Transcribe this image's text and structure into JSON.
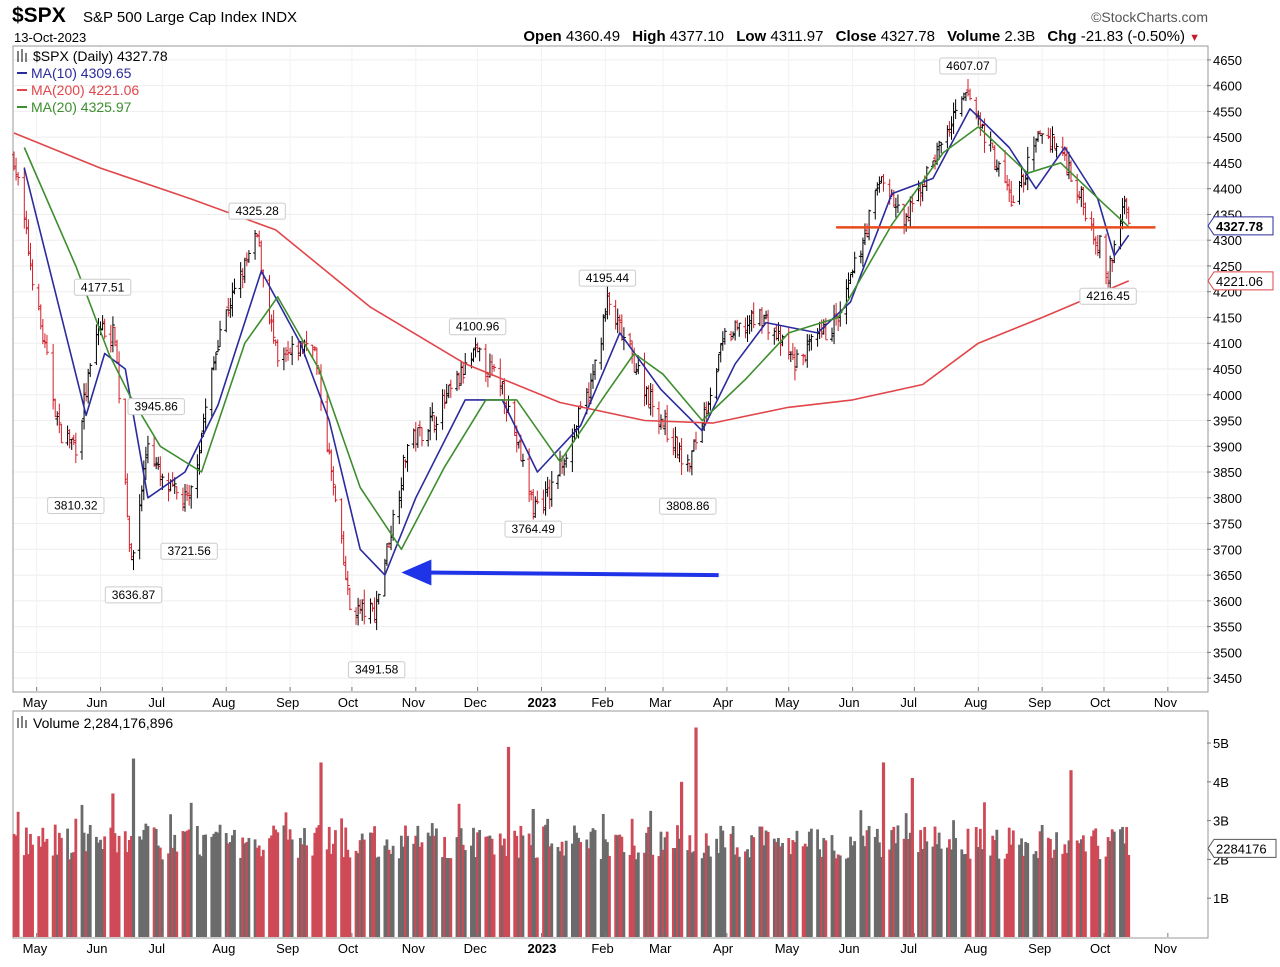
{
  "header": {
    "symbol": "$SPX",
    "index_name": "S&P 500 Large Cap Index",
    "exchange": "INDX",
    "date": "13-Oct-2023",
    "brand": "©StockCharts.com",
    "open_label": "Open",
    "open": "4360.49",
    "high_label": "High",
    "high": "4377.10",
    "low_label": "Low",
    "low": "4311.97",
    "close_label": "Close",
    "close": "4327.78",
    "volume_label": "Volume",
    "volume": "2.3B",
    "chg_label": "Chg",
    "chg": "-21.83 (-0.50%)"
  },
  "legend": {
    "price": "$SPX (Daily) 4327.78",
    "ma10": "MA(10) 4309.65",
    "ma200": "MA(200) 4221.06",
    "ma20": "MA(20) 4325.97",
    "volume": "Volume 2,284,176,896"
  },
  "colors": {
    "up": "#000000",
    "down": "#d11f2a",
    "ma10": "#2b2b9e",
    "ma20": "#3e8e2f",
    "ma200": "#e0464a",
    "support": "#e84a1c",
    "arrow": "#1f34e8",
    "vol_up": "#6b6b6b",
    "vol_down": "#cf4a57"
  },
  "chart_data": {
    "type": "line",
    "title": "$SPX (Daily)",
    "x_range": [
      "2022-04-20",
      "2023-11-20"
    ],
    "x_ticks": [
      {
        "label": "May",
        "date": "2022-05-01"
      },
      {
        "label": "Jun",
        "date": "2022-06-01"
      },
      {
        "label": "Jul",
        "date": "2022-07-01"
      },
      {
        "label": "Aug",
        "date": "2022-08-01"
      },
      {
        "label": "Sep",
        "date": "2022-09-01"
      },
      {
        "label": "Oct",
        "date": "2022-10-01"
      },
      {
        "label": "Nov",
        "date": "2022-11-01"
      },
      {
        "label": "Dec",
        "date": "2022-12-01"
      },
      {
        "label": "2023",
        "date": "2023-01-01"
      },
      {
        "label": "Feb",
        "date": "2023-02-01"
      },
      {
        "label": "Mar",
        "date": "2023-03-01"
      },
      {
        "label": "Apr",
        "date": "2023-04-01"
      },
      {
        "label": "May",
        "date": "2023-05-01"
      },
      {
        "label": "Jun",
        "date": "2023-06-01"
      },
      {
        "label": "Jul",
        "date": "2023-07-01"
      },
      {
        "label": "Aug",
        "date": "2023-08-01"
      },
      {
        "label": "Sep",
        "date": "2023-09-01"
      },
      {
        "label": "Oct",
        "date": "2023-10-01"
      },
      {
        "label": "Nov",
        "date": "2023-11-01"
      }
    ],
    "price_ylim": [
      3425,
      4675
    ],
    "price_ticks": [
      3450,
      3500,
      3550,
      3600,
      3650,
      3700,
      3750,
      3800,
      3850,
      3900,
      3950,
      4000,
      4050,
      4100,
      4150,
      4200,
      4250,
      4300,
      4350,
      4400,
      4450,
      4500,
      4550,
      4600,
      4650
    ],
    "price_path": [
      [
        "2022-04-20",
        4460
      ],
      [
        "2022-05-02",
        4155
      ],
      [
        "2022-05-12",
        3930
      ],
      [
        "2022-05-20",
        3901
      ],
      [
        "2022-05-31",
        4132
      ],
      [
        "2022-06-08",
        4115
      ],
      [
        "2022-06-16",
        3666
      ],
      [
        "2022-06-24",
        3911
      ],
      [
        "2022-07-01",
        3825
      ],
      [
        "2022-07-14",
        3790
      ],
      [
        "2022-07-29",
        4130
      ],
      [
        "2022-08-16",
        4305
      ],
      [
        "2022-08-26",
        4057
      ],
      [
        "2022-09-12",
        4110
      ],
      [
        "2022-09-30",
        3585
      ],
      [
        "2022-10-12",
        3577
      ],
      [
        "2022-10-28",
        3901
      ],
      [
        "2022-11-10",
        3956
      ],
      [
        "2022-11-30",
        4080
      ],
      [
        "2022-12-13",
        4019
      ],
      [
        "2022-12-28",
        3783
      ],
      [
        "2023-01-05",
        3808
      ],
      [
        "2023-01-25",
        4016
      ],
      [
        "2023-02-02",
        4179
      ],
      [
        "2023-02-23",
        3991
      ],
      [
        "2023-03-13",
        3855
      ],
      [
        "2023-03-31",
        4109
      ],
      [
        "2023-04-18",
        4154
      ],
      [
        "2023-05-04",
        4061
      ],
      [
        "2023-05-26",
        4151
      ],
      [
        "2023-06-15",
        4425
      ],
      [
        "2023-06-26",
        4328
      ],
      [
        "2023-07-12",
        4472
      ],
      [
        "2023-07-27",
        4585
      ],
      [
        "2023-08-18",
        4370
      ],
      [
        "2023-09-01",
        4515
      ],
      [
        "2023-09-12",
        4461
      ],
      [
        "2023-09-29",
        4288
      ],
      [
        "2023-10-03",
        4229
      ],
      [
        "2023-10-11",
        4376
      ],
      [
        "2023-10-13",
        4328
      ]
    ],
    "series": [
      {
        "name": "MA(10)",
        "last": 4309.65,
        "path": [
          [
            "2022-04-25",
            4440
          ],
          [
            "2022-05-10",
            4200
          ],
          [
            "2022-05-25",
            3960
          ],
          [
            "2022-06-03",
            4080
          ],
          [
            "2022-06-13",
            4050
          ],
          [
            "2022-06-24",
            3800
          ],
          [
            "2022-07-12",
            3850
          ],
          [
            "2022-07-28",
            3980
          ],
          [
            "2022-08-18",
            4240
          ],
          [
            "2022-09-06",
            4100
          ],
          [
            "2022-09-20",
            3950
          ],
          [
            "2022-10-05",
            3700
          ],
          [
            "2022-10-17",
            3650
          ],
          [
            "2022-11-01",
            3800
          ],
          [
            "2022-11-25",
            3990
          ],
          [
            "2022-12-13",
            3990
          ],
          [
            "2022-12-30",
            3850
          ],
          [
            "2023-01-20",
            3940
          ],
          [
            "2023-02-08",
            4120
          ],
          [
            "2023-02-28",
            4010
          ],
          [
            "2023-03-20",
            3930
          ],
          [
            "2023-04-05",
            4060
          ],
          [
            "2023-04-20",
            4140
          ],
          [
            "2023-05-15",
            4120
          ],
          [
            "2023-05-31",
            4180
          ],
          [
            "2023-06-20",
            4390
          ],
          [
            "2023-07-10",
            4420
          ],
          [
            "2023-07-28",
            4555
          ],
          [
            "2023-08-16",
            4480
          ],
          [
            "2023-08-29",
            4400
          ],
          [
            "2023-09-12",
            4480
          ],
          [
            "2023-09-28",
            4380
          ],
          [
            "2023-10-06",
            4270
          ],
          [
            "2023-10-13",
            4309.65
          ]
        ]
      },
      {
        "name": "MA(200)",
        "last": 4221.06,
        "path": [
          [
            "2022-04-20",
            4508
          ],
          [
            "2022-06-01",
            4440
          ],
          [
            "2022-07-15",
            4380
          ],
          [
            "2022-08-25",
            4320
          ],
          [
            "2022-10-10",
            4170
          ],
          [
            "2022-11-25",
            4060
          ],
          [
            "2023-01-10",
            3985
          ],
          [
            "2023-02-20",
            3950
          ],
          [
            "2023-03-25",
            3945
          ],
          [
            "2023-04-30",
            3975
          ],
          [
            "2023-06-01",
            3990
          ],
          [
            "2023-07-05",
            4020
          ],
          [
            "2023-08-01",
            4100
          ],
          [
            "2023-09-01",
            4150
          ],
          [
            "2023-10-13",
            4221.06
          ]
        ]
      },
      {
        "name": "MA(20)",
        "last": 4325.97,
        "path": [
          [
            "2022-04-25",
            4480
          ],
          [
            "2022-05-20",
            4250
          ],
          [
            "2022-06-05",
            4080
          ],
          [
            "2022-06-15",
            4000
          ],
          [
            "2022-06-30",
            3900
          ],
          [
            "2022-07-20",
            3850
          ],
          [
            "2022-08-10",
            4100
          ],
          [
            "2022-08-26",
            4190
          ],
          [
            "2022-09-15",
            4050
          ],
          [
            "2022-10-05",
            3820
          ],
          [
            "2022-10-25",
            3700
          ],
          [
            "2022-11-15",
            3860
          ],
          [
            "2022-12-05",
            3990
          ],
          [
            "2022-12-20",
            3990
          ],
          [
            "2023-01-10",
            3870
          ],
          [
            "2023-02-01",
            4000
          ],
          [
            "2023-02-15",
            4080
          ],
          [
            "2023-03-01",
            4040
          ],
          [
            "2023-03-20",
            3950
          ],
          [
            "2023-04-10",
            4030
          ],
          [
            "2023-05-01",
            4120
          ],
          [
            "2023-05-25",
            4150
          ],
          [
            "2023-06-20",
            4330
          ],
          [
            "2023-07-15",
            4470
          ],
          [
            "2023-08-01",
            4520
          ],
          [
            "2023-08-25",
            4430
          ],
          [
            "2023-09-10",
            4450
          ],
          [
            "2023-10-01",
            4370
          ],
          [
            "2023-10-13",
            4325.97
          ]
        ]
      }
    ],
    "annotations": [
      {
        "label": "3810.32",
        "date": "2022-05-20",
        "value": 3810.32,
        "place": "below"
      },
      {
        "label": "4177.51",
        "date": "2022-06-02",
        "value": 4177.51,
        "place": "above"
      },
      {
        "label": "3636.87",
        "date": "2022-06-17",
        "value": 3636.87,
        "place": "below"
      },
      {
        "label": "3945.86",
        "date": "2022-06-28",
        "value": 3945.86,
        "place": "above"
      },
      {
        "label": "3721.56",
        "date": "2022-07-14",
        "value": 3721.56,
        "place": "below"
      },
      {
        "label": "4325.28",
        "date": "2022-08-16",
        "value": 4325.28,
        "place": "above"
      },
      {
        "label": "3491.58",
        "date": "2022-10-13",
        "value": 3491.58,
        "place": "below"
      },
      {
        "label": "4100.96",
        "date": "2022-12-01",
        "value": 4100.96,
        "place": "above"
      },
      {
        "label": "3764.49",
        "date": "2022-12-28",
        "value": 3764.49,
        "place": "below"
      },
      {
        "label": "4195.44",
        "date": "2023-02-02",
        "value": 4195.44,
        "place": "above"
      },
      {
        "label": "3808.86",
        "date": "2023-03-13",
        "value": 3808.86,
        "place": "below"
      },
      {
        "label": "4607.07",
        "date": "2023-07-27",
        "value": 4607.07,
        "place": "above"
      },
      {
        "label": "4216.45",
        "date": "2023-10-03",
        "value": 4216.45,
        "place": "below"
      }
    ],
    "price_tags": [
      {
        "label": "4327.78",
        "value": 4327.78
      },
      {
        "label": "4221.06",
        "value": 4221.06
      }
    ],
    "support_line": {
      "value": 4325,
      "from": "2023-05-24",
      "to": "2023-10-26"
    },
    "arrow": {
      "from": [
        "2023-03-28",
        3650
      ],
      "to": [
        "2022-10-25",
        3655
      ]
    },
    "volume": {
      "ylim": [
        0,
        5.8
      ],
      "unit": "B",
      "ticks": [
        {
          "label": "1B",
          "value": 1
        },
        {
          "label": "2B",
          "value": 2
        },
        {
          "label": "3B",
          "value": 3
        },
        {
          "label": "4B",
          "value": 4
        },
        {
          "label": "5B",
          "value": 5
        }
      ],
      "tag": {
        "label": "2284176",
        "value": 2.284
      },
      "spikes": [
        {
          "date": "2022-06-17",
          "value": 4.6,
          "up": true
        },
        {
          "date": "2022-06-07",
          "value": 3.7,
          "up": false
        },
        {
          "date": "2022-09-16",
          "value": 4.5,
          "up": false
        },
        {
          "date": "2022-12-16",
          "value": 4.9,
          "up": false
        },
        {
          "date": "2022-12-28",
          "value": 3.3,
          "up": true
        },
        {
          "date": "2023-03-17",
          "value": 5.4,
          "up": false
        },
        {
          "date": "2023-03-10",
          "value": 4.0,
          "up": false
        },
        {
          "date": "2023-06-16",
          "value": 4.5,
          "up": false
        },
        {
          "date": "2023-06-30",
          "value": 4.1,
          "up": false
        },
        {
          "date": "2023-09-15",
          "value": 4.3,
          "up": false
        }
      ]
    }
  }
}
